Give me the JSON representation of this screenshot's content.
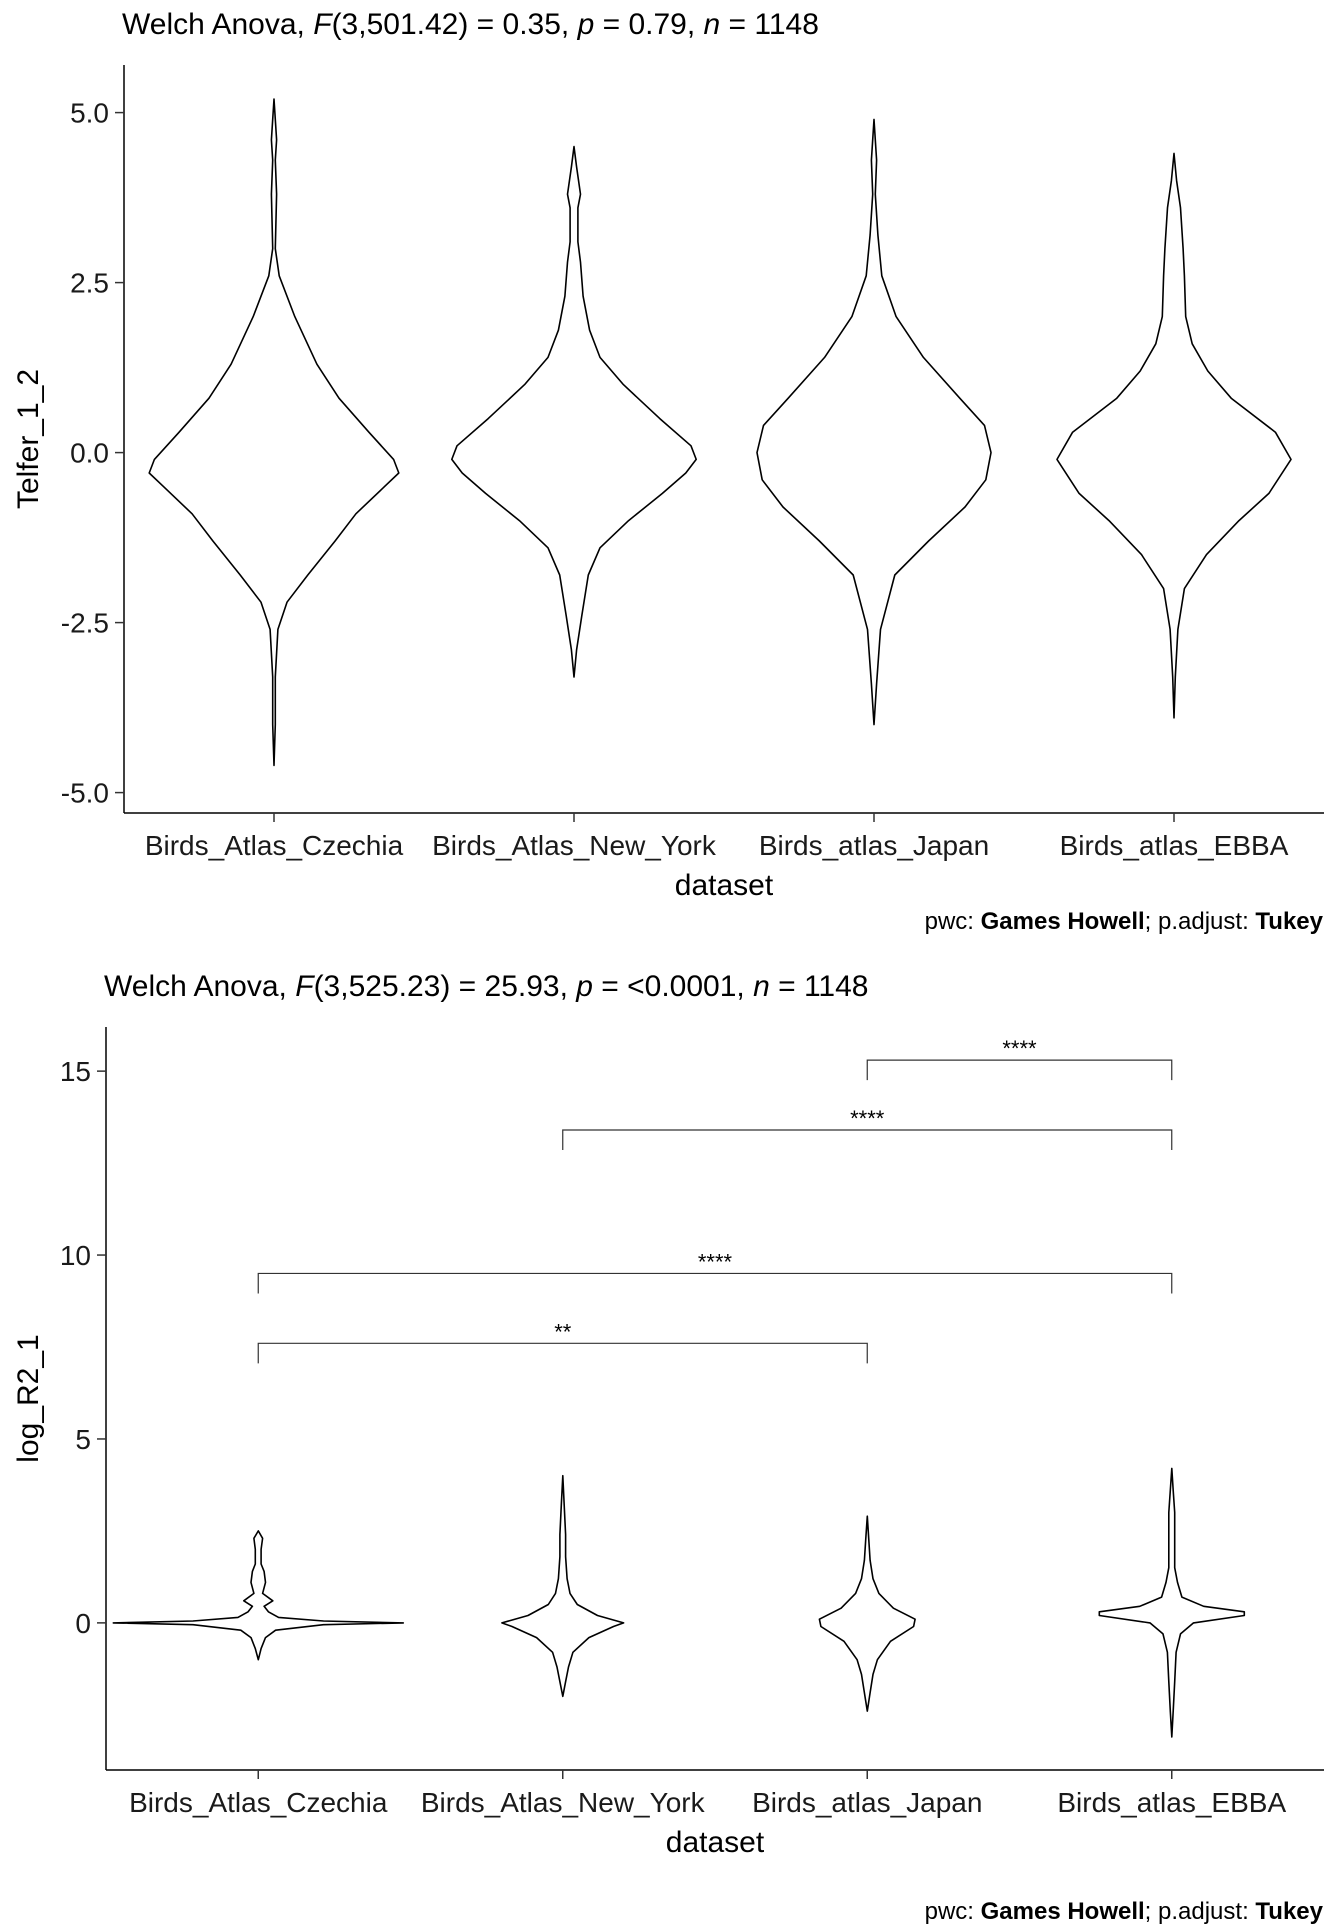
{
  "chart_data": [
    {
      "type": "violin",
      "title": {
        "prefix": "Welch Anova, ",
        "stat_symbol": "F",
        "stat_args": "(3,501.42) = 0.35, ",
        "p_symbol": "p",
        "p_text": " = 0.79, ",
        "n_symbol": "n",
        "n_text": " = 1148"
      },
      "xlabel": "dataset",
      "ylabel": "Telfer_1_2",
      "categories": [
        "Birds_Atlas_Czechia",
        "Birds_Atlas_New_York",
        "Birds_atlas_Japan",
        "Birds_atlas_EBBA"
      ],
      "ylim": [
        -5.3,
        5.7
      ],
      "yticks": [
        -5.0,
        -2.5,
        0.0,
        2.5,
        5.0
      ],
      "ytick_labels": [
        "-5.0",
        "-2.5",
        "0.0",
        "2.5",
        "5.0"
      ],
      "caption": {
        "prefix": "pwc: ",
        "method": "Games Howell",
        "mid": "; p.adjust: ",
        "adjust": "Tukey"
      },
      "violins": [
        {
          "category": "Birds_Atlas_Czechia",
          "ymin": -4.6,
          "ymax": 5.2,
          "profile": [
            [
              -4.6,
              0.0
            ],
            [
              -4.0,
              0.01
            ],
            [
              -3.3,
              0.01
            ],
            [
              -2.6,
              0.03
            ],
            [
              -2.2,
              0.1
            ],
            [
              -1.8,
              0.26
            ],
            [
              -1.3,
              0.47
            ],
            [
              -0.9,
              0.63
            ],
            [
              -0.5,
              0.85
            ],
            [
              -0.3,
              0.96
            ],
            [
              -0.1,
              0.92
            ],
            [
              0.3,
              0.73
            ],
            [
              0.8,
              0.5
            ],
            [
              1.3,
              0.33
            ],
            [
              2.0,
              0.16
            ],
            [
              2.6,
              0.04
            ],
            [
              3.0,
              0.01
            ],
            [
              3.8,
              0.02
            ],
            [
              4.3,
              0.01
            ],
            [
              4.6,
              0.02
            ],
            [
              5.2,
              0.0
            ]
          ]
        },
        {
          "category": "Birds_Atlas_New_York",
          "ymin": -3.3,
          "ymax": 4.5,
          "profile": [
            [
              -3.3,
              0.0
            ],
            [
              -2.9,
              0.02
            ],
            [
              -2.4,
              0.06
            ],
            [
              -1.8,
              0.11
            ],
            [
              -1.4,
              0.2
            ],
            [
              -1.0,
              0.42
            ],
            [
              -0.6,
              0.68
            ],
            [
              -0.3,
              0.86
            ],
            [
              -0.1,
              0.94
            ],
            [
              0.1,
              0.9
            ],
            [
              0.5,
              0.66
            ],
            [
              1.0,
              0.38
            ],
            [
              1.4,
              0.2
            ],
            [
              1.8,
              0.12
            ],
            [
              2.3,
              0.07
            ],
            [
              2.8,
              0.05
            ],
            [
              3.1,
              0.03
            ],
            [
              3.6,
              0.03
            ],
            [
              3.8,
              0.05
            ],
            [
              4.2,
              0.02
            ],
            [
              4.5,
              0.0
            ]
          ]
        },
        {
          "category": "Birds_atlas_Japan",
          "ymin": -4.0,
          "ymax": 4.9,
          "profile": [
            [
              -4.0,
              0.0
            ],
            [
              -3.4,
              0.02
            ],
            [
              -2.6,
              0.05
            ],
            [
              -1.8,
              0.16
            ],
            [
              -1.3,
              0.42
            ],
            [
              -0.8,
              0.7
            ],
            [
              -0.4,
              0.86
            ],
            [
              0.0,
              0.9
            ],
            [
              0.4,
              0.85
            ],
            [
              0.8,
              0.66
            ],
            [
              1.4,
              0.38
            ],
            [
              2.0,
              0.17
            ],
            [
              2.6,
              0.06
            ],
            [
              3.2,
              0.03
            ],
            [
              3.8,
              0.01
            ],
            [
              4.3,
              0.02
            ],
            [
              4.9,
              0.0
            ]
          ]
        },
        {
          "category": "Birds_atlas_EBBA",
          "ymin": -3.9,
          "ymax": 4.4,
          "profile": [
            [
              -3.9,
              0.0
            ],
            [
              -3.3,
              0.01
            ],
            [
              -2.6,
              0.03
            ],
            [
              -2.0,
              0.08
            ],
            [
              -1.5,
              0.25
            ],
            [
              -1.0,
              0.5
            ],
            [
              -0.6,
              0.73
            ],
            [
              -0.1,
              0.9
            ],
            [
              0.3,
              0.78
            ],
            [
              0.8,
              0.44
            ],
            [
              1.2,
              0.26
            ],
            [
              1.6,
              0.14
            ],
            [
              2.0,
              0.09
            ],
            [
              2.6,
              0.08
            ],
            [
              3.0,
              0.07
            ],
            [
              3.6,
              0.05
            ],
            [
              4.0,
              0.02
            ],
            [
              4.4,
              0.0
            ]
          ]
        }
      ]
    },
    {
      "type": "violin",
      "title": {
        "prefix": "Welch Anova, ",
        "stat_symbol": "F",
        "stat_args": "(3,525.23) = 25.93, ",
        "p_symbol": "p",
        "p_text": " = <0.0001, ",
        "n_symbol": "n",
        "n_text": " = 1148"
      },
      "xlabel": "dataset",
      "ylabel": "log_R2_1",
      "categories": [
        "Birds_Atlas_Czechia",
        "Birds_Atlas_New_York",
        "Birds_atlas_Japan",
        "Birds_atlas_EBBA"
      ],
      "ylim": [
        -4.0,
        16.2
      ],
      "yticks": [
        0,
        5,
        10,
        15
      ],
      "ytick_labels": [
        "0",
        "5",
        "10",
        "15"
      ],
      "caption": {
        "prefix": "pwc: ",
        "method": "Games Howell",
        "mid": "; p.adjust: ",
        "adjust": "Tukey"
      },
      "violins": [
        {
          "category": "Birds_Atlas_Czechia",
          "ymin": -1.0,
          "ymax": 2.5,
          "profile": [
            [
              -1.0,
              0.0
            ],
            [
              -0.7,
              0.02
            ],
            [
              -0.4,
              0.05
            ],
            [
              -0.2,
              0.12
            ],
            [
              -0.05,
              0.45
            ],
            [
              0.0,
              1.0
            ],
            [
              0.05,
              0.45
            ],
            [
              0.15,
              0.14
            ],
            [
              0.3,
              0.07
            ],
            [
              0.45,
              0.04
            ],
            [
              0.6,
              0.1
            ],
            [
              0.8,
              0.03
            ],
            [
              1.1,
              0.05
            ],
            [
              1.4,
              0.04
            ],
            [
              1.6,
              0.02
            ],
            [
              2.0,
              0.02
            ],
            [
              2.3,
              0.03
            ],
            [
              2.5,
              0.0
            ]
          ]
        },
        {
          "category": "Birds_Atlas_New_York",
          "ymin": -2.0,
          "ymax": 4.0,
          "profile": [
            [
              -2.0,
              0.0
            ],
            [
              -1.6,
              0.02
            ],
            [
              -1.2,
              0.04
            ],
            [
              -0.8,
              0.07
            ],
            [
              -0.4,
              0.18
            ],
            [
              -0.1,
              0.35
            ],
            [
              0.0,
              0.42
            ],
            [
              0.2,
              0.24
            ],
            [
              0.5,
              0.1
            ],
            [
              0.8,
              0.05
            ],
            [
              1.2,
              0.03
            ],
            [
              1.8,
              0.02
            ],
            [
              2.4,
              0.02
            ],
            [
              3.2,
              0.01
            ],
            [
              4.0,
              0.0
            ]
          ]
        },
        {
          "category": "Birds_atlas_Japan",
          "ymin": -2.4,
          "ymax": 2.9,
          "profile": [
            [
              -2.4,
              0.0
            ],
            [
              -1.9,
              0.02
            ],
            [
              -1.4,
              0.04
            ],
            [
              -1.0,
              0.07
            ],
            [
              -0.5,
              0.16
            ],
            [
              -0.1,
              0.32
            ],
            [
              0.1,
              0.33
            ],
            [
              0.4,
              0.18
            ],
            [
              0.8,
              0.08
            ],
            [
              1.2,
              0.04
            ],
            [
              1.7,
              0.02
            ],
            [
              2.3,
              0.01
            ],
            [
              2.9,
              0.0
            ]
          ]
        },
        {
          "category": "Birds_atlas_EBBA",
          "ymin": -3.1,
          "ymax": 4.2,
          "profile": [
            [
              -3.1,
              0.0
            ],
            [
              -2.4,
              0.01
            ],
            [
              -1.6,
              0.02
            ],
            [
              -0.8,
              0.03
            ],
            [
              -0.3,
              0.06
            ],
            [
              0.0,
              0.15
            ],
            [
              0.2,
              0.5
            ],
            [
              0.3,
              0.5
            ],
            [
              0.45,
              0.22
            ],
            [
              0.7,
              0.07
            ],
            [
              1.1,
              0.04
            ],
            [
              1.5,
              0.02
            ],
            [
              2.2,
              0.02
            ],
            [
              3.0,
              0.02
            ],
            [
              3.6,
              0.01
            ],
            [
              4.2,
              0.0
            ]
          ]
        }
      ],
      "comparisons": [
        {
          "group1": "Birds_atlas_Japan",
          "group2": "Birds_atlas_EBBA",
          "label": "****",
          "y": 15.3
        },
        {
          "group1": "Birds_Atlas_New_York",
          "group2": "Birds_atlas_EBBA",
          "label": "****",
          "y": 13.4
        },
        {
          "group1": "Birds_Atlas_Czechia",
          "group2": "Birds_atlas_EBBA",
          "label": "****",
          "y": 9.5
        },
        {
          "group1": "Birds_Atlas_Czechia",
          "group2": "Birds_atlas_Japan",
          "label": "**",
          "y": 7.6
        }
      ]
    }
  ]
}
